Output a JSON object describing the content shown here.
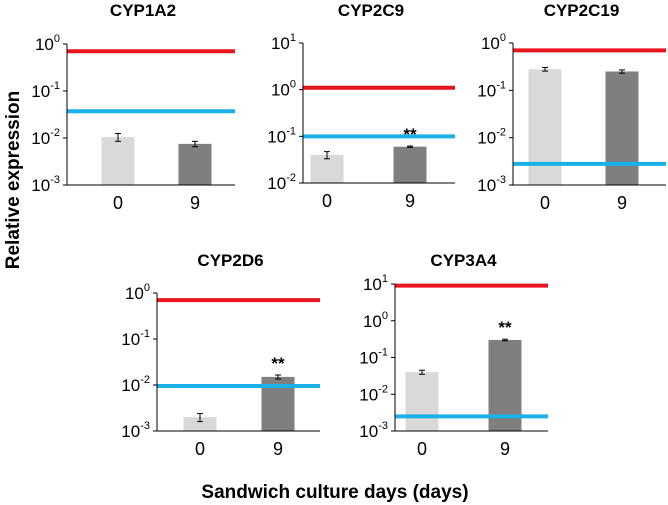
{
  "figure": {
    "ylabel": "Relative expression",
    "xlabel": "Sandwich culture days (days)"
  },
  "colors": {
    "bar_day0": "#d9d9d9",
    "bar_day9": "#7f7f7f",
    "upper_ref_line": "#e8141e",
    "lower_ref_line": "#1ab0e8",
    "error_bar": "#000000",
    "axis": "#000000"
  },
  "chart_data": [
    {
      "type": "bar",
      "title": "CYP1A2",
      "yscale": "log",
      "ylim": [
        0.001,
        1
      ],
      "yticks": [
        {
          "base": "10",
          "exp": "0"
        },
        {
          "base": "10",
          "exp": "-1"
        },
        {
          "base": "10",
          "exp": "-2"
        },
        {
          "base": "10",
          "exp": "-3"
        }
      ],
      "categories": [
        "0",
        "9"
      ],
      "values": [
        0.0105,
        0.0075
      ],
      "errors": [
        0.002,
        0.001
      ],
      "significance": [
        "",
        ""
      ],
      "ref_lines": [
        {
          "name": "upper",
          "value": 0.7
        },
        {
          "name": "lower",
          "value": 0.037
        }
      ]
    },
    {
      "type": "bar",
      "title": "CYP2C9",
      "yscale": "log",
      "ylim": [
        0.01,
        10
      ],
      "yticks": [
        {
          "base": "10",
          "exp": "1"
        },
        {
          "base": "10",
          "exp": "0"
        },
        {
          "base": "10",
          "exp": "-1"
        },
        {
          "base": "10",
          "exp": "-2"
        }
      ],
      "categories": [
        "0",
        "9"
      ],
      "values": [
        0.04,
        0.06
      ],
      "errors": [
        0.007,
        0.002
      ],
      "significance": [
        "",
        "**"
      ],
      "ref_lines": [
        {
          "name": "upper",
          "value": 1.1
        },
        {
          "name": "lower",
          "value": 0.1
        }
      ]
    },
    {
      "type": "bar",
      "title": "CYP2C19",
      "yscale": "log",
      "ylim": [
        0.001,
        1
      ],
      "yticks": [
        {
          "base": "10",
          "exp": "0"
        },
        {
          "base": "10",
          "exp": "-1"
        },
        {
          "base": "10",
          "exp": "-2"
        },
        {
          "base": "10",
          "exp": "-3"
        }
      ],
      "categories": [
        "0",
        "9"
      ],
      "values": [
        0.28,
        0.25
      ],
      "errors": [
        0.025,
        0.02
      ],
      "significance": [
        "",
        ""
      ],
      "ref_lines": [
        {
          "name": "upper",
          "value": 0.7
        },
        {
          "name": "lower",
          "value": 0.0028
        }
      ]
    },
    {
      "type": "bar",
      "title": "CYP2D6",
      "yscale": "log",
      "ylim": [
        0.001,
        1
      ],
      "yticks": [
        {
          "base": "10",
          "exp": "0"
        },
        {
          "base": "10",
          "exp": "-1"
        },
        {
          "base": "10",
          "exp": "-2"
        },
        {
          "base": "10",
          "exp": "-3"
        }
      ],
      "categories": [
        "0",
        "9"
      ],
      "values": [
        0.002,
        0.015
      ],
      "errors": [
        0.0004,
        0.0015
      ],
      "significance": [
        "",
        "**"
      ],
      "ref_lines": [
        {
          "name": "upper",
          "value": 0.7
        },
        {
          "name": "lower",
          "value": 0.0095
        }
      ]
    },
    {
      "type": "bar",
      "title": "CYP3A4",
      "yscale": "log",
      "ylim": [
        0.001,
        10
      ],
      "yticks": [
        {
          "base": "10",
          "exp": "1"
        },
        {
          "base": "10",
          "exp": "0"
        },
        {
          "base": "10",
          "exp": "-1"
        },
        {
          "base": "10",
          "exp": "-2"
        },
        {
          "base": "10",
          "exp": "-3"
        }
      ],
      "categories": [
        "0",
        "9"
      ],
      "values": [
        0.04,
        0.3
      ],
      "errors": [
        0.005,
        0.015
      ],
      "significance": [
        "",
        "**"
      ],
      "ref_lines": [
        {
          "name": "upper",
          "value": 9
        },
        {
          "name": "lower",
          "value": 0.0025
        }
      ]
    }
  ]
}
